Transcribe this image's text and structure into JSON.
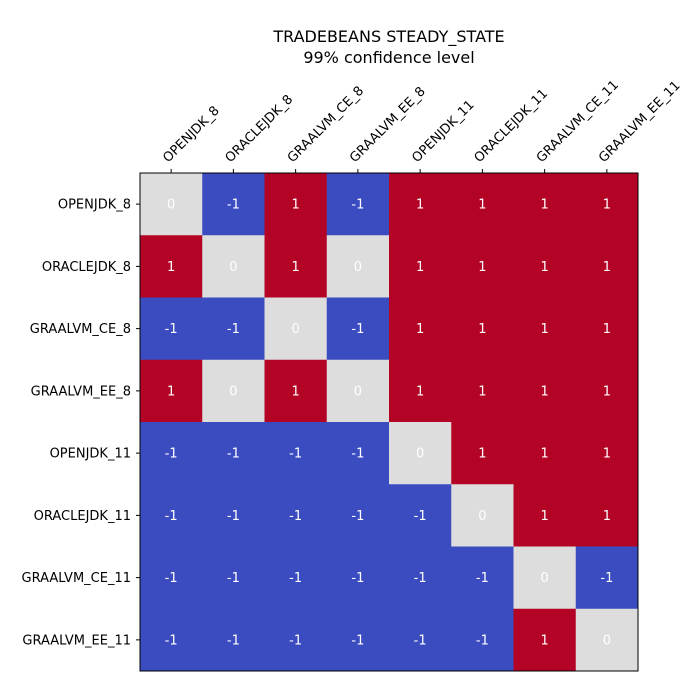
{
  "chart_data": {
    "type": "heatmap",
    "title": "TRADEBEANS STEADY_STATE",
    "subtitle": "99% confidence level",
    "row_labels": [
      "OPENJDK_8",
      "ORACLEJDK_8",
      "GRAALVM_CE_8",
      "GRAALVM_EE_8",
      "OPENJDK_11",
      "ORACLEJDK_11",
      "GRAALVM_CE_11",
      "GRAALVM_EE_11"
    ],
    "col_labels": [
      "OPENJDK_8",
      "ORACLEJDK_8",
      "GRAALVM_CE_8",
      "GRAALVM_EE_8",
      "OPENJDK_11",
      "ORACLEJDK_11",
      "GRAALVM_CE_11",
      "GRAALVM_EE_11"
    ],
    "values": [
      [
        0,
        -1,
        1,
        -1,
        1,
        1,
        1,
        1
      ],
      [
        1,
        0,
        1,
        0,
        1,
        1,
        1,
        1
      ],
      [
        -1,
        -1,
        0,
        -1,
        1,
        1,
        1,
        1
      ],
      [
        1,
        0,
        1,
        0,
        1,
        1,
        1,
        1
      ],
      [
        -1,
        -1,
        -1,
        -1,
        0,
        1,
        1,
        1
      ],
      [
        -1,
        -1,
        -1,
        -1,
        -1,
        0,
        1,
        1
      ],
      [
        -1,
        -1,
        -1,
        -1,
        -1,
        -1,
        0,
        -1
      ],
      [
        -1,
        -1,
        -1,
        -1,
        -1,
        -1,
        1,
        0
      ]
    ],
    "value_range": [
      -1,
      1
    ],
    "colormap": "coolwarm",
    "colors": {
      "-1": "#3b4cc0",
      "0": "#dddddd",
      "1": "#b40426"
    },
    "grid": false,
    "legend": "none"
  }
}
